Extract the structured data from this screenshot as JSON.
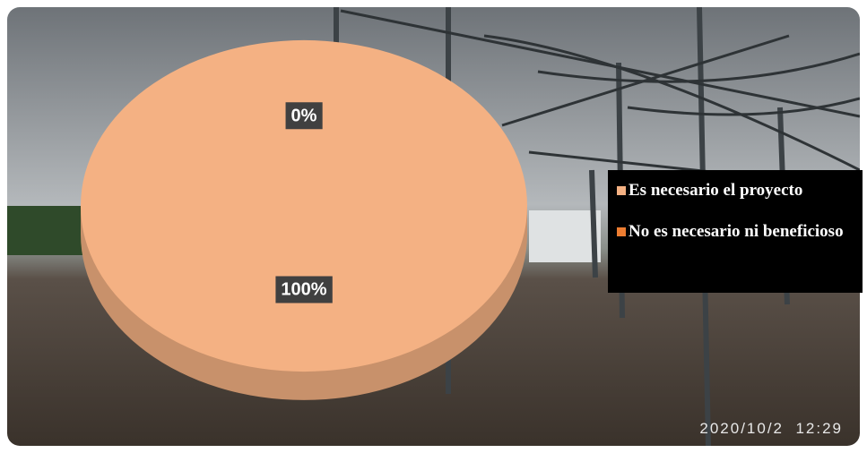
{
  "chart_data": {
    "type": "pie",
    "style": "3d",
    "categories": [
      "Es necesario el proyecto",
      "No es necesario ni beneficioso"
    ],
    "values": [
      100,
      0
    ],
    "value_labels": [
      "100%",
      "0%"
    ],
    "colors": [
      "#f4b183",
      "#ed7d31"
    ],
    "legend": "right"
  },
  "background": {
    "timestamp": "2020/10/2  12:29"
  }
}
